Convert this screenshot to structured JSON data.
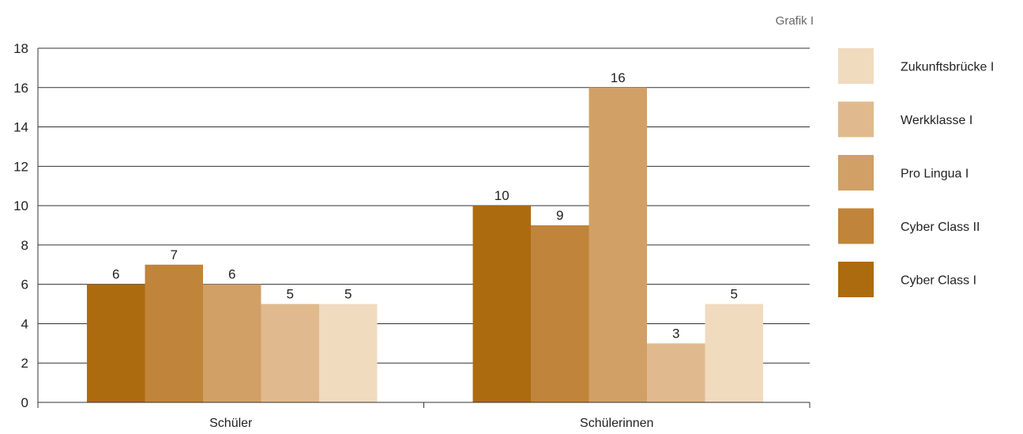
{
  "caption": "Grafik I",
  "chart_data": {
    "type": "bar",
    "categories": [
      "Schüler",
      "Schülerinnen"
    ],
    "series": [
      {
        "name": "Cyber Class I",
        "color": "#ad6b10",
        "values": [
          6,
          10
        ]
      },
      {
        "name": "Cyber Class II",
        "color": "#c0843a",
        "values": [
          7,
          9
        ]
      },
      {
        "name": "Pro Lingua I",
        "color": "#d1a066",
        "values": [
          6,
          16
        ]
      },
      {
        "name": "Werkklasse I",
        "color": "#e0ba8e",
        "values": [
          5,
          3
        ]
      },
      {
        "name": "Zukunftsbrücke I",
        "color": "#f0dbbf",
        "values": [
          5,
          5
        ]
      }
    ],
    "ylim": [
      0,
      18
    ],
    "yticks": [
      0,
      2,
      4,
      6,
      8,
      10,
      12,
      14,
      16,
      18
    ],
    "grid": true,
    "legend_position": "right",
    "legend_order": [
      "Zukunftsbrücke I",
      "Werkklasse I",
      "Pro Lingua I",
      "Cyber Class II",
      "Cyber Class I"
    ],
    "title": "",
    "xlabel": "",
    "ylabel": ""
  }
}
